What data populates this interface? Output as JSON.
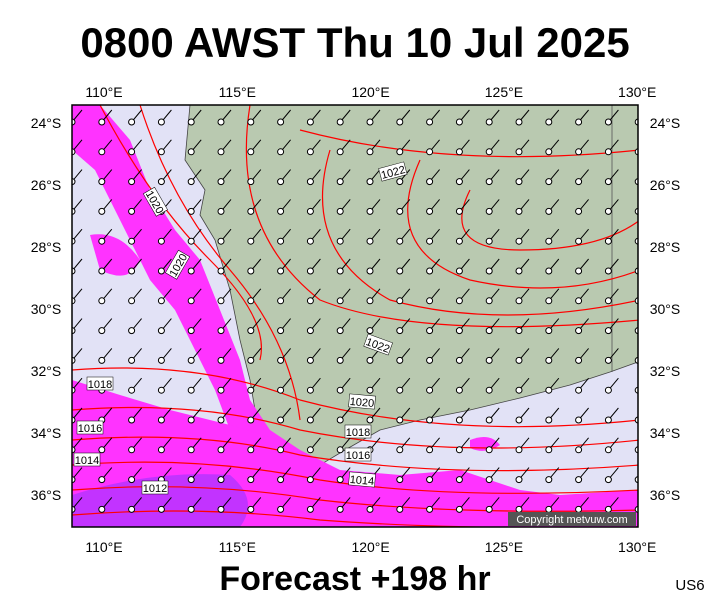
{
  "header": {
    "title": "0800 AWST Thu 10 Jul 2025"
  },
  "map": {
    "lon_labels": [
      "110°E",
      "115°E",
      "120°E",
      "125°E",
      "130°E"
    ],
    "lat_labels": [
      "24°S",
      "26°S",
      "28°S",
      "30°S",
      "32°S",
      "34°S",
      "36°S"
    ],
    "isobar_labels": [
      "1022",
      "1020",
      "1020",
      "1022",
      "1020",
      "1018",
      "1018",
      "1016",
      "1016",
      "1014",
      "1014",
      "1012"
    ],
    "copyright": "Copyright metvuw.com"
  },
  "footer": {
    "forecast": "Forecast +198 hr",
    "code": "US6"
  }
}
